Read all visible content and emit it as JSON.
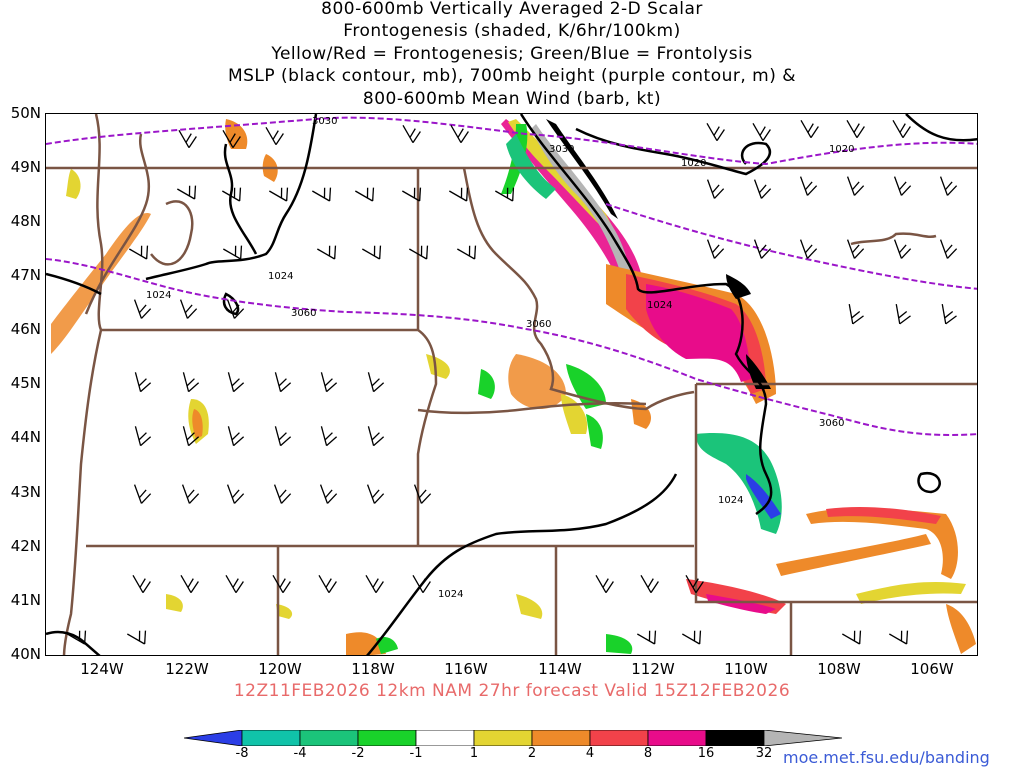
{
  "title_lines": [
    "800-600mb Vertically Averaged 2-D Scalar",
    "Frontogenesis (shaded, K/6hr/100km)",
    "Yellow/Red = Frontogenesis;  Green/Blue = Frontolysis",
    "MSLP (black contour, mb), 700mb height (purple contour, m) &",
    "800-600mb Mean Wind (barb, kt)"
  ],
  "lat_labels": [
    "50N",
    "49N",
    "48N",
    "47N",
    "46N",
    "45N",
    "44N",
    "43N",
    "42N",
    "41N",
    "40N"
  ],
  "lon_labels": [
    "124W",
    "122W",
    "120W",
    "118W",
    "116W",
    "114W",
    "112W",
    "110W",
    "108W",
    "106W"
  ],
  "contour_labels": {
    "mslp": [
      "1020",
      "1020",
      "1024",
      "1024",
      "1024",
      "1024",
      "1024"
    ],
    "height700": [
      "3030",
      "3030",
      "3060",
      "3060",
      "3060"
    ]
  },
  "valid_line": "12Z11FEB2026 12km NAM 27hr forecast Valid 15Z12FEB2026",
  "colorbar": {
    "labels": [
      "-8",
      "-4",
      "-2",
      "-1",
      "1",
      "2",
      "4",
      "8",
      "16",
      "32"
    ],
    "colors": [
      "#2b3ee6",
      "#10c3a9",
      "#1bc47a",
      "#19d22a",
      "#ffffff",
      "#e3d532",
      "#ee8a2a",
      "#f2424a",
      "#e80c8a",
      "#000000",
      "#b5b5b5"
    ]
  },
  "credit": "moe.met.fsu.edu/banding",
  "map_colors": {
    "state_border": "#7a5544",
    "mslp": "#000000",
    "height": "#9b16c9"
  }
}
